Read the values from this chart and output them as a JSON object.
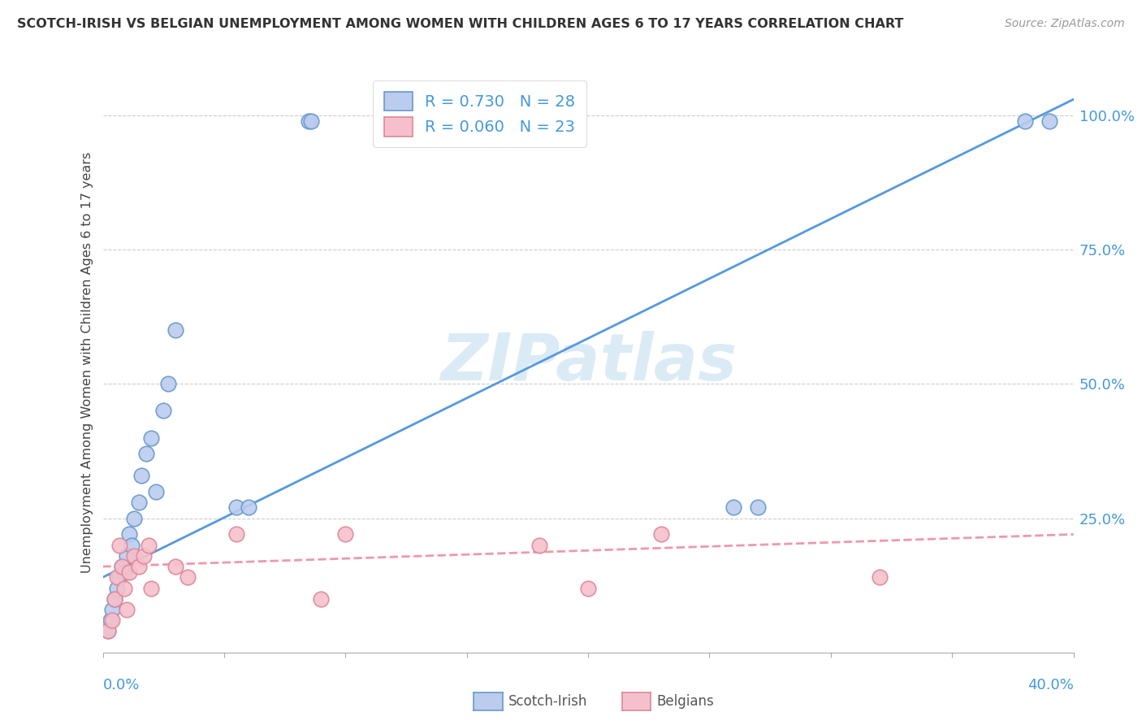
{
  "title": "SCOTCH-IRISH VS BELGIAN UNEMPLOYMENT AMONG WOMEN WITH CHILDREN AGES 6 TO 17 YEARS CORRELATION CHART",
  "source": "Source: ZipAtlas.com",
  "ylabel": "Unemployment Among Women with Children Ages 6 to 17 years",
  "scotch_irish_R": "0.730",
  "scotch_irish_N": "28",
  "belgians_R": "0.060",
  "belgians_N": "23",
  "scotch_irish_edge": "#6699CC",
  "scotch_irish_face": "#BBCCEE",
  "belgians_edge": "#DD8899",
  "belgians_face": "#F5C0CC",
  "regression_blue": "#5599DD",
  "regression_pink": "#EE99AA",
  "watermark_color": "#D5E8F5",
  "grid_color": "#CCCCCC",
  "label_color": "#4499DD",
  "title_color": "#333333",
  "source_color": "#999999",
  "scotch_irish_x": [
    0.002,
    0.003,
    0.004,
    0.005,
    0.006,
    0.007,
    0.008,
    0.009,
    0.01,
    0.011,
    0.012,
    0.013,
    0.015,
    0.016,
    0.018,
    0.02,
    0.022,
    0.025,
    0.027,
    0.03,
    0.055,
    0.06,
    0.085,
    0.086,
    0.26,
    0.27,
    0.38,
    0.39
  ],
  "scotch_irish_y": [
    0.04,
    0.06,
    0.08,
    0.1,
    0.12,
    0.14,
    0.16,
    0.15,
    0.18,
    0.22,
    0.2,
    0.25,
    0.28,
    0.33,
    0.37,
    0.4,
    0.3,
    0.45,
    0.5,
    0.6,
    0.27,
    0.27,
    0.99,
    0.99,
    0.27,
    0.27,
    0.99,
    0.99
  ],
  "belgians_x": [
    0.002,
    0.004,
    0.005,
    0.006,
    0.007,
    0.008,
    0.009,
    0.01,
    0.011,
    0.013,
    0.015,
    0.017,
    0.019,
    0.02,
    0.03,
    0.035,
    0.055,
    0.09,
    0.1,
    0.18,
    0.2,
    0.23,
    0.32
  ],
  "belgians_y": [
    0.04,
    0.06,
    0.1,
    0.14,
    0.2,
    0.16,
    0.12,
    0.08,
    0.15,
    0.18,
    0.16,
    0.18,
    0.2,
    0.12,
    0.16,
    0.14,
    0.22,
    0.1,
    0.22,
    0.2,
    0.12,
    0.22,
    0.14
  ],
  "si_line_x": [
    0.0,
    0.4
  ],
  "si_line_y": [
    0.14,
    1.03
  ],
  "be_line_x": [
    0.0,
    0.4
  ],
  "be_line_y": [
    0.16,
    0.22
  ],
  "xlim": [
    0.0,
    0.4
  ],
  "ylim": [
    0.0,
    1.08
  ],
  "yticks": [
    0.25,
    0.5,
    0.75,
    1.0
  ],
  "ytick_labels": [
    "25.0%",
    "50.0%",
    "75.0%",
    "100.0%"
  ],
  "marker_size": 180
}
